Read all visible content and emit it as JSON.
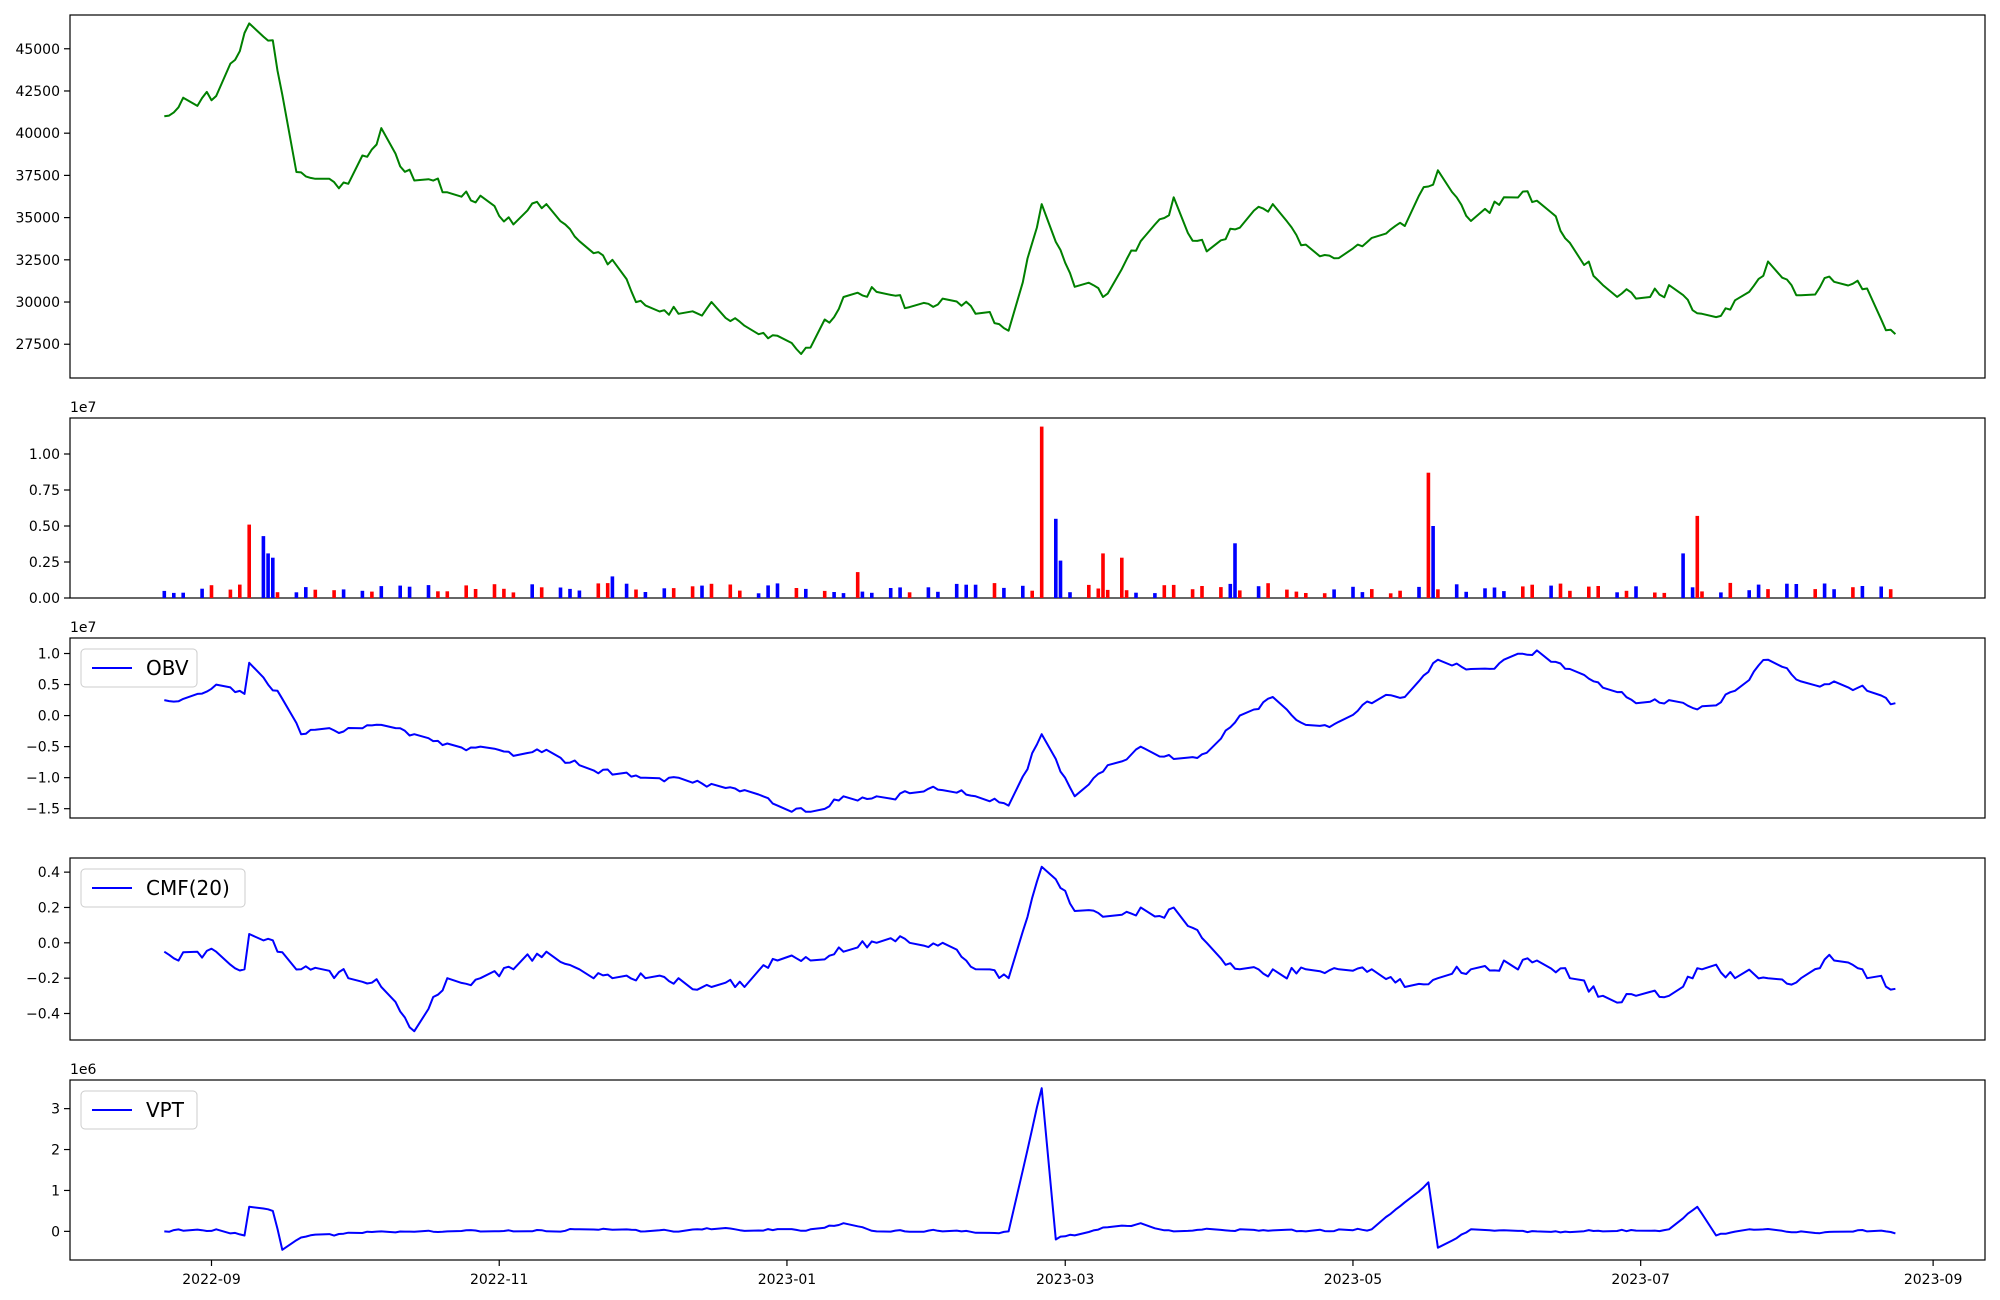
{
  "colors": {
    "price": "#008000",
    "volume_up": "#ff0000",
    "volume_down": "#0000ff",
    "indicator": "#0000ff"
  },
  "chart_data": [
    {
      "id": "price",
      "type": "line",
      "color": "#008000",
      "ylim": [
        25500,
        47000
      ],
      "yticks": [
        27500,
        30000,
        32500,
        35000,
        37500,
        40000,
        42500,
        45000
      ],
      "ytick_labels": [
        "27500",
        "30000",
        "32500",
        "35000",
        "37500",
        "40000",
        "42500",
        "45000"
      ],
      "keys": [
        [
          "2022-08-22",
          41000
        ],
        [
          "2022-08-26",
          42100
        ],
        [
          "2022-09-02",
          42200
        ],
        [
          "2022-09-09",
          46500
        ],
        [
          "2022-09-14",
          45500
        ],
        [
          "2022-09-19",
          37700
        ],
        [
          "2022-09-23",
          37300
        ],
        [
          "2022-09-30",
          37000
        ],
        [
          "2022-10-07",
          40300
        ],
        [
          "2022-10-14",
          37200
        ],
        [
          "2022-10-21",
          36500
        ],
        [
          "2022-10-28",
          36300
        ],
        [
          "2022-11-04",
          34600
        ],
        [
          "2022-11-11",
          35800
        ],
        [
          "2022-11-18",
          33600
        ],
        [
          "2022-11-25",
          32500
        ],
        [
          "2022-12-02",
          29800
        ],
        [
          "2022-12-09",
          29300
        ],
        [
          "2022-12-16",
          30000
        ],
        [
          "2022-12-23",
          28600
        ],
        [
          "2022-12-30",
          28000
        ],
        [
          "2023-01-06",
          27300
        ],
        [
          "2023-01-13",
          30300
        ],
        [
          "2023-01-20",
          30600
        ],
        [
          "2023-01-27",
          29700
        ],
        [
          "2023-02-03",
          30200
        ],
        [
          "2023-02-10",
          29300
        ],
        [
          "2023-02-17",
          28300
        ],
        [
          "2023-02-24",
          35800
        ],
        [
          "2023-03-03",
          30900
        ],
        [
          "2023-03-10",
          30500
        ],
        [
          "2023-03-17",
          33600
        ],
        [
          "2023-03-24",
          36200
        ],
        [
          "2023-03-31",
          33000
        ],
        [
          "2023-04-07",
          34400
        ],
        [
          "2023-04-14",
          35800
        ],
        [
          "2023-04-21",
          33400
        ],
        [
          "2023-04-28",
          32600
        ],
        [
          "2023-05-05",
          33800
        ],
        [
          "2023-05-12",
          34500
        ],
        [
          "2023-05-19",
          37800
        ],
        [
          "2023-05-26",
          34800
        ],
        [
          "2023-06-02",
          36200
        ],
        [
          "2023-06-09",
          36000
        ],
        [
          "2023-06-16",
          33500
        ],
        [
          "2023-06-23",
          31000
        ],
        [
          "2023-06-30",
          30200
        ],
        [
          "2023-07-07",
          31000
        ],
        [
          "2023-07-14",
          29300
        ],
        [
          "2023-07-21",
          30100
        ],
        [
          "2023-07-28",
          32400
        ],
        [
          "2023-08-04",
          30400
        ],
        [
          "2023-08-11",
          31200
        ],
        [
          "2023-08-18",
          30800
        ],
        [
          "2023-08-24",
          28100
        ]
      ]
    },
    {
      "id": "volume",
      "type": "bar",
      "multiplier_label": "1e7",
      "ylim": [
        0,
        1.25
      ],
      "yticks": [
        0,
        0.25,
        0.5,
        0.75,
        1.0
      ],
      "ytick_labels": [
        "0.00",
        "0.25",
        "0.50",
        "0.75",
        "1.00"
      ],
      "baseline": 0.07,
      "spikes": [
        [
          "2022-09-09",
          0.51,
          "up"
        ],
        [
          "2022-09-12",
          0.43,
          "down"
        ],
        [
          "2022-09-13",
          0.31,
          "down"
        ],
        [
          "2022-09-14",
          0.28,
          "down"
        ],
        [
          "2022-11-25",
          0.15,
          "down"
        ],
        [
          "2023-01-16",
          0.18,
          "up"
        ],
        [
          "2023-02-24",
          1.19,
          "up"
        ],
        [
          "2023-02-27",
          0.55,
          "down"
        ],
        [
          "2023-02-28",
          0.26,
          "down"
        ],
        [
          "2023-03-09",
          0.31,
          "up"
        ],
        [
          "2023-03-13",
          0.28,
          "up"
        ],
        [
          "2023-04-06",
          0.38,
          "down"
        ],
        [
          "2023-05-17",
          0.87,
          "up"
        ],
        [
          "2023-05-18",
          0.5,
          "down"
        ],
        [
          "2023-07-10",
          0.31,
          "down"
        ],
        [
          "2023-07-13",
          0.57,
          "up"
        ]
      ]
    },
    {
      "id": "obv",
      "type": "line",
      "color": "#0000ff",
      "legend": "OBV",
      "multiplier_label": "1e7",
      "ylim": [
        -1.65,
        1.25
      ],
      "yticks": [
        -1.5,
        -1.0,
        -0.5,
        0.0,
        0.5,
        1.0
      ],
      "ytick_labels": [
        "−1.5",
        "−1.0",
        "−0.5",
        "0.0",
        "0.5",
        "1.0"
      ],
      "keys": [
        [
          "2022-08-22",
          0.25
        ],
        [
          "2022-08-29",
          0.35
        ],
        [
          "2022-09-02",
          0.5
        ],
        [
          "2022-09-08",
          0.35
        ],
        [
          "2022-09-09",
          0.85
        ],
        [
          "2022-09-15",
          0.4
        ],
        [
          "2022-09-20",
          -0.3
        ],
        [
          "2022-09-30",
          -0.2
        ],
        [
          "2022-10-07",
          -0.15
        ],
        [
          "2022-10-14",
          -0.3
        ],
        [
          "2022-10-21",
          -0.45
        ],
        [
          "2022-10-28",
          -0.5
        ],
        [
          "2022-11-04",
          -0.65
        ],
        [
          "2022-11-11",
          -0.55
        ],
        [
          "2022-11-18",
          -0.8
        ],
        [
          "2022-11-25",
          -0.95
        ],
        [
          "2022-12-02",
          -1.0
        ],
        [
          "2022-12-09",
          -1.0
        ],
        [
          "2022-12-16",
          -1.1
        ],
        [
          "2022-12-23",
          -1.2
        ],
        [
          "2022-12-30",
          -1.45
        ],
        [
          "2023-01-06",
          -1.55
        ],
        [
          "2023-01-13",
          -1.3
        ],
        [
          "2023-01-20",
          -1.3
        ],
        [
          "2023-01-27",
          -1.25
        ],
        [
          "2023-02-03",
          -1.2
        ],
        [
          "2023-02-10",
          -1.3
        ],
        [
          "2023-02-17",
          -1.45
        ],
        [
          "2023-02-24",
          -0.3
        ],
        [
          "2023-03-03",
          -1.3
        ],
        [
          "2023-03-10",
          -0.8
        ],
        [
          "2023-03-17",
          -0.5
        ],
        [
          "2023-03-24",
          -0.7
        ],
        [
          "2023-03-31",
          -0.6
        ],
        [
          "2023-04-07",
          0.0
        ],
        [
          "2023-04-14",
          0.3
        ],
        [
          "2023-04-21",
          -0.15
        ],
        [
          "2023-04-28",
          -0.1
        ],
        [
          "2023-05-05",
          0.2
        ],
        [
          "2023-05-12",
          0.3
        ],
        [
          "2023-05-19",
          0.9
        ],
        [
          "2023-05-26",
          0.75
        ],
        [
          "2023-06-02",
          0.9
        ],
        [
          "2023-06-09",
          1.05
        ],
        [
          "2023-06-16",
          0.75
        ],
        [
          "2023-06-23",
          0.45
        ],
        [
          "2023-06-30",
          0.2
        ],
        [
          "2023-07-07",
          0.25
        ],
        [
          "2023-07-14",
          0.15
        ],
        [
          "2023-07-21",
          0.4
        ],
        [
          "2023-07-28",
          0.9
        ],
        [
          "2023-08-04",
          0.55
        ],
        [
          "2023-08-11",
          0.55
        ],
        [
          "2023-08-18",
          0.4
        ],
        [
          "2023-08-24",
          0.2
        ]
      ]
    },
    {
      "id": "cmf",
      "type": "line",
      "color": "#0000ff",
      "legend": "CMF(20)",
      "ylim": [
        -0.55,
        0.48
      ],
      "yticks": [
        -0.4,
        -0.2,
        0.0,
        0.2,
        0.4
      ],
      "ytick_labels": [
        "−0.4",
        "−0.2",
        "0.0",
        "0.2",
        "0.4"
      ],
      "keys": [
        [
          "2022-08-22",
          -0.05
        ],
        [
          "2022-08-29",
          -0.05
        ],
        [
          "2022-09-02",
          -0.05
        ],
        [
          "2022-09-08",
          -0.15
        ],
        [
          "2022-09-09",
          0.05
        ],
        [
          "2022-09-15",
          -0.05
        ],
        [
          "2022-09-20",
          -0.15
        ],
        [
          "2022-09-30",
          -0.2
        ],
        [
          "2022-10-07",
          -0.25
        ],
        [
          "2022-10-14",
          -0.5
        ],
        [
          "2022-10-21",
          -0.2
        ],
        [
          "2022-10-28",
          -0.2
        ],
        [
          "2022-11-04",
          -0.15
        ],
        [
          "2022-11-11",
          -0.05
        ],
        [
          "2022-11-18",
          -0.15
        ],
        [
          "2022-11-25",
          -0.2
        ],
        [
          "2022-12-02",
          -0.2
        ],
        [
          "2022-12-09",
          -0.2
        ],
        [
          "2022-12-16",
          -0.25
        ],
        [
          "2022-12-23",
          -0.25
        ],
        [
          "2022-12-30",
          -0.1
        ],
        [
          "2023-01-06",
          -0.1
        ],
        [
          "2023-01-13",
          -0.05
        ],
        [
          "2023-01-20",
          0.0
        ],
        [
          "2023-01-27",
          0.0
        ],
        [
          "2023-02-03",
          0.0
        ],
        [
          "2023-02-10",
          -0.15
        ],
        [
          "2023-02-17",
          -0.2
        ],
        [
          "2023-02-24",
          0.43
        ],
        [
          "2023-03-03",
          0.18
        ],
        [
          "2023-03-10",
          0.15
        ],
        [
          "2023-03-17",
          0.2
        ],
        [
          "2023-03-24",
          0.2
        ],
        [
          "2023-03-31",
          0.0
        ],
        [
          "2023-04-07",
          -0.15
        ],
        [
          "2023-04-14",
          -0.15
        ],
        [
          "2023-04-21",
          -0.15
        ],
        [
          "2023-04-28",
          -0.15
        ],
        [
          "2023-05-05",
          -0.15
        ],
        [
          "2023-05-12",
          -0.25
        ],
        [
          "2023-05-19",
          -0.2
        ],
        [
          "2023-05-26",
          -0.15
        ],
        [
          "2023-06-02",
          -0.1
        ],
        [
          "2023-06-09",
          -0.1
        ],
        [
          "2023-06-16",
          -0.2
        ],
        [
          "2023-06-23",
          -0.3
        ],
        [
          "2023-06-30",
          -0.3
        ],
        [
          "2023-07-07",
          -0.3
        ],
        [
          "2023-07-14",
          -0.15
        ],
        [
          "2023-07-21",
          -0.2
        ],
        [
          "2023-07-28",
          -0.2
        ],
        [
          "2023-08-04",
          -0.2
        ],
        [
          "2023-08-11",
          -0.1
        ],
        [
          "2023-08-18",
          -0.2
        ],
        [
          "2023-08-24",
          -0.26
        ]
      ]
    },
    {
      "id": "vpt",
      "type": "line",
      "color": "#0000ff",
      "legend": "VPT",
      "multiplier_label": "1e6",
      "ylim": [
        -0.7,
        3.7
      ],
      "yticks": [
        0,
        1,
        2,
        3
      ],
      "ytick_labels": [
        "0",
        "1",
        "2",
        "3"
      ],
      "xticks": [
        "2022-09-01",
        "2022-11-01",
        "2023-01-01",
        "2023-03-01",
        "2023-05-01",
        "2023-07-01",
        "2023-09-01"
      ],
      "xtick_labels": [
        "2022-09",
        "2022-11",
        "2023-01",
        "2023-03",
        "2023-05",
        "2023-07",
        "2023-09"
      ],
      "keys": [
        [
          "2022-08-22",
          0.0
        ],
        [
          "2022-09-02",
          0.05
        ],
        [
          "2022-09-08",
          -0.1
        ],
        [
          "2022-09-09",
          0.6
        ],
        [
          "2022-09-14",
          0.5
        ],
        [
          "2022-09-16",
          -0.45
        ],
        [
          "2022-09-20",
          -0.15
        ],
        [
          "2022-10-07",
          0.0
        ],
        [
          "2022-10-21",
          0.0
        ],
        [
          "2022-11-04",
          0.0
        ],
        [
          "2022-11-18",
          0.05
        ],
        [
          "2022-12-02",
          0.0
        ],
        [
          "2022-12-16",
          0.05
        ],
        [
          "2023-01-06",
          0.05
        ],
        [
          "2023-01-13",
          0.2
        ],
        [
          "2023-01-20",
          0.0
        ],
        [
          "2023-02-03",
          0.0
        ],
        [
          "2023-02-17",
          0.0
        ],
        [
          "2023-02-24",
          3.5
        ],
        [
          "2023-02-27",
          -0.2
        ],
        [
          "2023-03-10",
          0.1
        ],
        [
          "2023-03-17",
          0.2
        ],
        [
          "2023-03-24",
          0.0
        ],
        [
          "2023-04-07",
          0.05
        ],
        [
          "2023-04-21",
          0.0
        ],
        [
          "2023-05-05",
          0.05
        ],
        [
          "2023-05-17",
          1.2
        ],
        [
          "2023-05-19",
          -0.4
        ],
        [
          "2023-05-26",
          0.05
        ],
        [
          "2023-06-09",
          0.0
        ],
        [
          "2023-06-23",
          0.0
        ],
        [
          "2023-07-07",
          0.05
        ],
        [
          "2023-07-13",
          0.6
        ],
        [
          "2023-07-17",
          -0.1
        ],
        [
          "2023-07-24",
          0.05
        ],
        [
          "2023-08-04",
          0.0
        ],
        [
          "2023-08-18",
          0.0
        ],
        [
          "2023-08-24",
          -0.05
        ]
      ]
    }
  ]
}
